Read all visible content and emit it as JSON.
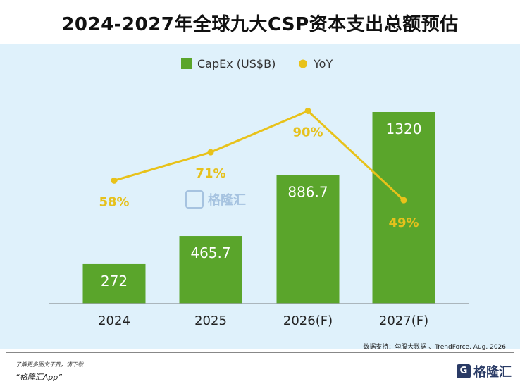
{
  "title": "2024-2027年全球九大CSP资本支出总额预估",
  "chart_data": {
    "type": "bar",
    "categories": [
      "2024",
      "2025",
      "2026(F)",
      "2027(F)"
    ],
    "series": [
      {
        "name": "CapEx (US$B)",
        "type": "bar",
        "values": [
          272,
          465.7,
          886.7,
          1320
        ],
        "value_labels": [
          "272",
          "465.7",
          "886.7",
          "1320"
        ],
        "color": "#5aa52b"
      },
      {
        "name": "YoY",
        "type": "line",
        "values": [
          58,
          71,
          90,
          49
        ],
        "value_labels": [
          "58%",
          "71%",
          "90%",
          "49%"
        ],
        "color": "#e8c21a"
      }
    ],
    "legend": {
      "position": "top"
    },
    "grid": false
  },
  "footer": {
    "source": "数据支持：勾股大数据 、TrendForce, Aug. 2026",
    "promo_line1": "了解更多图文干货，请下载",
    "promo_line2": "“格隆汇App”",
    "brand": "格隆汇",
    "brand_mark": "G"
  },
  "watermark": {
    "text": "格隆汇"
  }
}
